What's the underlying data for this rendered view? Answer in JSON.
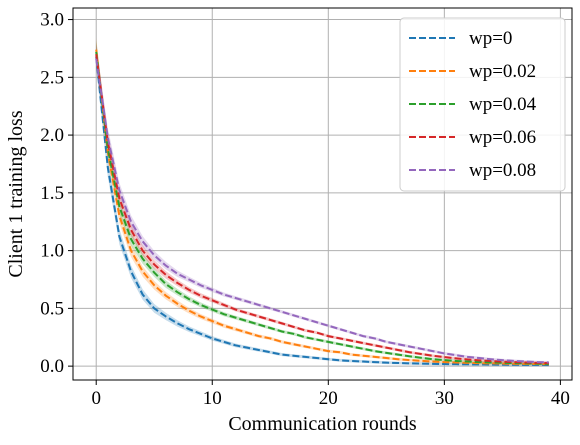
{
  "chart_data": {
    "type": "line",
    "xlabel": "Communication rounds",
    "ylabel": "Client 1 training loss",
    "xlim": [
      -2,
      41
    ],
    "ylim": [
      -0.12,
      3.1
    ],
    "xticks": [
      0,
      10,
      20,
      30,
      40
    ],
    "yticks": [
      0.0,
      0.5,
      1.0,
      1.5,
      2.0,
      2.5,
      3.0
    ],
    "xtick_labels": [
      "0",
      "10",
      "20",
      "30",
      "40"
    ],
    "ytick_labels": [
      "0.0",
      "0.5",
      "1.0",
      "1.5",
      "2.0",
      "2.5",
      "3.0"
    ],
    "grid": true,
    "legend_position": "top-right",
    "x": [
      0,
      1,
      2,
      3,
      4,
      5,
      6,
      7,
      8,
      9,
      10,
      11,
      12,
      13,
      14,
      15,
      16,
      17,
      18,
      19,
      20,
      21,
      22,
      23,
      24,
      25,
      26,
      27,
      28,
      29,
      30,
      31,
      32,
      33,
      34,
      35,
      36,
      37,
      38,
      39
    ],
    "series": [
      {
        "name": "wp=0",
        "color": "#1f77b4",
        "values": [
          2.68,
          1.72,
          1.12,
          0.82,
          0.62,
          0.5,
          0.43,
          0.37,
          0.32,
          0.28,
          0.24,
          0.21,
          0.18,
          0.16,
          0.14,
          0.12,
          0.1,
          0.09,
          0.08,
          0.07,
          0.06,
          0.05,
          0.045,
          0.04,
          0.035,
          0.03,
          0.027,
          0.024,
          0.022,
          0.02,
          0.018,
          0.017,
          0.016,
          0.015,
          0.014,
          0.013,
          0.012,
          0.011,
          0.011,
          0.01
        ]
      },
      {
        "name": "wp=0.02",
        "color": "#ff7f0e",
        "values": [
          2.74,
          1.85,
          1.3,
          1.0,
          0.82,
          0.7,
          0.61,
          0.54,
          0.48,
          0.43,
          0.39,
          0.35,
          0.32,
          0.29,
          0.26,
          0.24,
          0.21,
          0.19,
          0.17,
          0.15,
          0.13,
          0.12,
          0.1,
          0.09,
          0.08,
          0.07,
          0.06,
          0.052,
          0.046,
          0.04,
          0.035,
          0.031,
          0.028,
          0.026,
          0.024,
          0.022,
          0.02,
          0.019,
          0.018,
          0.017
        ]
      },
      {
        "name": "wp=0.04",
        "color": "#2ca02c",
        "values": [
          2.72,
          1.88,
          1.38,
          1.1,
          0.93,
          0.81,
          0.71,
          0.64,
          0.58,
          0.53,
          0.49,
          0.45,
          0.42,
          0.39,
          0.36,
          0.33,
          0.3,
          0.28,
          0.25,
          0.23,
          0.21,
          0.19,
          0.17,
          0.15,
          0.13,
          0.115,
          0.1,
          0.085,
          0.072,
          0.06,
          0.052,
          0.045,
          0.04,
          0.035,
          0.032,
          0.029,
          0.026,
          0.024,
          0.022,
          0.02
        ]
      },
      {
        "name": "wp=0.06",
        "color": "#d62728",
        "values": [
          2.7,
          1.94,
          1.45,
          1.18,
          1.0,
          0.88,
          0.79,
          0.72,
          0.66,
          0.61,
          0.57,
          0.53,
          0.49,
          0.46,
          0.43,
          0.4,
          0.37,
          0.34,
          0.31,
          0.29,
          0.26,
          0.24,
          0.22,
          0.2,
          0.18,
          0.16,
          0.14,
          0.12,
          0.105,
          0.09,
          0.078,
          0.067,
          0.058,
          0.05,
          0.044,
          0.039,
          0.035,
          0.031,
          0.028,
          0.026
        ]
      },
      {
        "name": "wp=0.08",
        "color": "#9467bd",
        "values": [
          2.66,
          1.98,
          1.52,
          1.25,
          1.08,
          0.96,
          0.87,
          0.8,
          0.75,
          0.7,
          0.66,
          0.62,
          0.59,
          0.56,
          0.53,
          0.5,
          0.47,
          0.44,
          0.41,
          0.38,
          0.35,
          0.32,
          0.29,
          0.26,
          0.24,
          0.21,
          0.19,
          0.17,
          0.15,
          0.13,
          0.11,
          0.095,
          0.08,
          0.07,
          0.06,
          0.052,
          0.045,
          0.04,
          0.035,
          0.032
        ]
      }
    ]
  }
}
